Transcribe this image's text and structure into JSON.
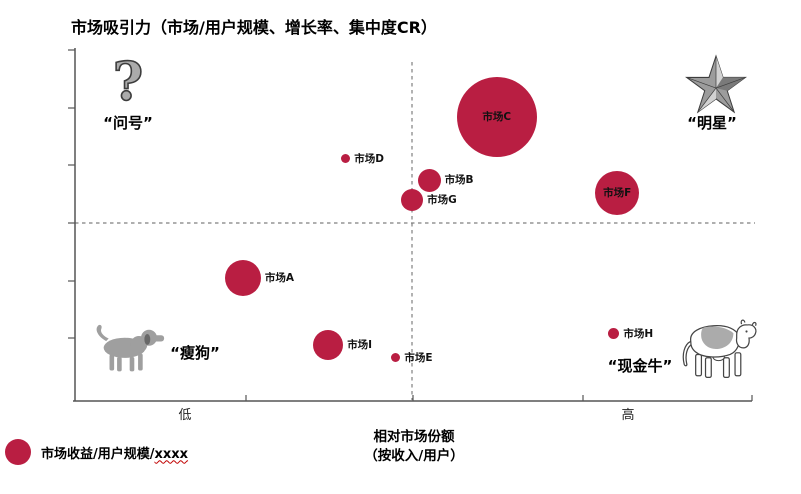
{
  "title": "市场吸引力（市场/用户规模、增长率、集中度CR）",
  "colors": {
    "bubble": "#B91E42",
    "axis": "#555555",
    "dashed_line": "#7f7f7f",
    "icon_gray": "#9f9f9f",
    "icon_outline": "#454545"
  },
  "quadrants": {
    "question_mark": {
      "label": "“问号”",
      "icon": "question-mark-icon"
    },
    "star": {
      "label": "“明星”",
      "icon": "star-icon"
    },
    "dog": {
      "label": "“瘦狗”",
      "icon": "dog-icon"
    },
    "cash_cow": {
      "label": "“现金牛”",
      "icon": "cow-icon"
    }
  },
  "x_axis": {
    "low": "低",
    "high": "高",
    "title_line1": "相对市场份额",
    "title_line2": "（按收入/用户）"
  },
  "legend": {
    "text": "市场收益/用户规模/",
    "placeholder": "xxxx"
  },
  "chart_data": {
    "type": "scatter",
    "subtype": "bubble-bcg-matrix",
    "title": "市场吸引力（市场/用户规模、增长率、集中度CR）",
    "xlabel": "相对市场份额（按收入/用户）",
    "ylabel": "市场吸引力（市场/用户规模、增长率、集中度CR）",
    "x_tick_labels": [
      "低",
      "高"
    ],
    "bubble_size_meaning": "市场收益/用户规模/xxxx",
    "quadrant_labels": {
      "top_left": "“问号”",
      "top_right": "“明星”",
      "bottom_left": "“瘦狗”",
      "bottom_right": "“现金牛”"
    },
    "crosshair": {
      "x_pct": 49.8,
      "y_pct": 50.4
    },
    "axis_note": "x and y are percent of plot area, y measured from bottom (higher = more attractive); r is bubble radius in px encoding market size",
    "bubbles": [
      {
        "id": "A",
        "name": "市场A",
        "x": 24.8,
        "y": 34.8,
        "r": 18,
        "label_pos": "right"
      },
      {
        "id": "B",
        "name": "市场B",
        "x": 52.3,
        "y": 62.6,
        "r": 11.5,
        "label_pos": "right"
      },
      {
        "id": "C",
        "name": "市场C",
        "x": 62.3,
        "y": 80.5,
        "r": 40,
        "label_pos": "inside"
      },
      {
        "id": "D",
        "name": "市场D",
        "x": 40.0,
        "y": 68.6,
        "r": 4.5,
        "label_pos": "right"
      },
      {
        "id": "E",
        "name": "市场E",
        "x": 47.4,
        "y": 12.2,
        "r": 4.5,
        "label_pos": "right"
      },
      {
        "id": "F",
        "name": "市场F",
        "x": 80.1,
        "y": 58.9,
        "r": 22,
        "label_pos": "inside"
      },
      {
        "id": "G",
        "name": "市场G",
        "x": 49.8,
        "y": 56.9,
        "r": 11,
        "label_pos": "right"
      },
      {
        "id": "H",
        "name": "市场H",
        "x": 79.6,
        "y": 19.0,
        "r": 5.5,
        "label_pos": "right"
      },
      {
        "id": "I",
        "name": "市场I",
        "x": 37.4,
        "y": 15.9,
        "r": 15,
        "label_pos": "right"
      }
    ]
  }
}
